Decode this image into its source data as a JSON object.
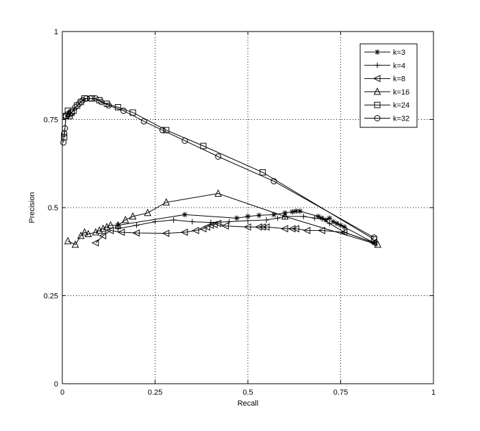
{
  "chart_data": {
    "type": "line",
    "xlabel": "Recall",
    "ylabel": "Precision",
    "xlim": [
      0,
      1
    ],
    "ylim": [
      0,
      1
    ],
    "xticks": [
      "0",
      "0.25",
      "0.5",
      "0.75",
      "1"
    ],
    "yticks": [
      "0",
      "0.25",
      "0.5",
      "0.75",
      "1"
    ],
    "grid": true,
    "legend_position": "top-right",
    "series": [
      {
        "name": "k=3",
        "marker": "asterisk",
        "points": [
          [
            0.15,
            0.45
          ],
          [
            0.33,
            0.48
          ],
          [
            0.47,
            0.47
          ],
          [
            0.5,
            0.475
          ],
          [
            0.53,
            0.478
          ],
          [
            0.57,
            0.48
          ],
          [
            0.6,
            0.485
          ],
          [
            0.62,
            0.488
          ],
          [
            0.63,
            0.49
          ],
          [
            0.64,
            0.49
          ],
          [
            0.69,
            0.475
          ],
          [
            0.7,
            0.47
          ],
          [
            0.71,
            0.465
          ],
          [
            0.72,
            0.47
          ],
          [
            0.73,
            0.46
          ],
          [
            0.74,
            0.455
          ],
          [
            0.75,
            0.45
          ],
          [
            0.76,
            0.445
          ],
          [
            0.84,
            0.4
          ]
        ]
      },
      {
        "name": "k=4",
        "marker": "plus",
        "points": [
          [
            0.15,
            0.44
          ],
          [
            0.2,
            0.45
          ],
          [
            0.25,
            0.46
          ],
          [
            0.3,
            0.465
          ],
          [
            0.35,
            0.46
          ],
          [
            0.4,
            0.458
          ],
          [
            0.45,
            0.46
          ],
          [
            0.5,
            0.463
          ],
          [
            0.55,
            0.465
          ],
          [
            0.58,
            0.47
          ],
          [
            0.6,
            0.475
          ],
          [
            0.65,
            0.475
          ],
          [
            0.68,
            0.47
          ],
          [
            0.7,
            0.468
          ],
          [
            0.72,
            0.455
          ],
          [
            0.76,
            0.43
          ],
          [
            0.84,
            0.4
          ]
        ]
      },
      {
        "name": "k=8",
        "marker": "triangle-left",
        "points": [
          [
            0.09,
            0.4
          ],
          [
            0.11,
            0.42
          ],
          [
            0.13,
            0.435
          ],
          [
            0.16,
            0.43
          ],
          [
            0.2,
            0.428
          ],
          [
            0.28,
            0.427
          ],
          [
            0.33,
            0.43
          ],
          [
            0.36,
            0.435
          ],
          [
            0.38,
            0.44
          ],
          [
            0.39,
            0.445
          ],
          [
            0.4,
            0.45
          ],
          [
            0.41,
            0.452
          ],
          [
            0.42,
            0.455
          ],
          [
            0.44,
            0.448
          ],
          [
            0.5,
            0.445
          ],
          [
            0.53,
            0.445
          ],
          [
            0.54,
            0.445
          ],
          [
            0.55,
            0.445
          ],
          [
            0.6,
            0.44
          ],
          [
            0.62,
            0.44
          ],
          [
            0.63,
            0.44
          ],
          [
            0.66,
            0.435
          ],
          [
            0.7,
            0.435
          ],
          [
            0.76,
            0.43
          ],
          [
            0.84,
            0.4
          ]
        ]
      },
      {
        "name": "k=16",
        "marker": "triangle-up",
        "points": [
          [
            0.015,
            0.405
          ],
          [
            0.035,
            0.395
          ],
          [
            0.05,
            0.42
          ],
          [
            0.06,
            0.43
          ],
          [
            0.07,
            0.425
          ],
          [
            0.09,
            0.43
          ],
          [
            0.1,
            0.435
          ],
          [
            0.11,
            0.44
          ],
          [
            0.12,
            0.445
          ],
          [
            0.13,
            0.45
          ],
          [
            0.15,
            0.45
          ],
          [
            0.17,
            0.465
          ],
          [
            0.19,
            0.475
          ],
          [
            0.23,
            0.485
          ],
          [
            0.28,
            0.515
          ],
          [
            0.42,
            0.54
          ],
          [
            0.6,
            0.475
          ],
          [
            0.85,
            0.395
          ]
        ]
      },
      {
        "name": "k=24",
        "marker": "square",
        "points": [
          [
            0.005,
            0.7
          ],
          [
            0.01,
            0.76
          ],
          [
            0.015,
            0.775
          ],
          [
            0.02,
            0.76
          ],
          [
            0.025,
            0.77
          ],
          [
            0.03,
            0.775
          ],
          [
            0.04,
            0.79
          ],
          [
            0.05,
            0.8
          ],
          [
            0.06,
            0.81
          ],
          [
            0.08,
            0.81
          ],
          [
            0.1,
            0.805
          ],
          [
            0.12,
            0.795
          ],
          [
            0.15,
            0.785
          ],
          [
            0.19,
            0.77
          ],
          [
            0.28,
            0.72
          ],
          [
            0.38,
            0.675
          ],
          [
            0.54,
            0.6
          ],
          [
            0.84,
            0.41
          ]
        ]
      },
      {
        "name": "k=32",
        "marker": "circle",
        "points": [
          [
            0.003,
            0.685
          ],
          [
            0.005,
            0.71
          ],
          [
            0.007,
            0.725
          ],
          [
            0.01,
            0.76
          ],
          [
            0.015,
            0.765
          ],
          [
            0.02,
            0.765
          ],
          [
            0.025,
            0.77
          ],
          [
            0.035,
            0.785
          ],
          [
            0.045,
            0.795
          ],
          [
            0.055,
            0.805
          ],
          [
            0.065,
            0.81
          ],
          [
            0.075,
            0.81
          ],
          [
            0.09,
            0.81
          ],
          [
            0.105,
            0.8
          ],
          [
            0.125,
            0.79
          ],
          [
            0.165,
            0.775
          ],
          [
            0.22,
            0.745
          ],
          [
            0.27,
            0.72
          ],
          [
            0.33,
            0.69
          ],
          [
            0.42,
            0.645
          ],
          [
            0.57,
            0.575
          ],
          [
            0.84,
            0.415
          ]
        ]
      }
    ]
  }
}
